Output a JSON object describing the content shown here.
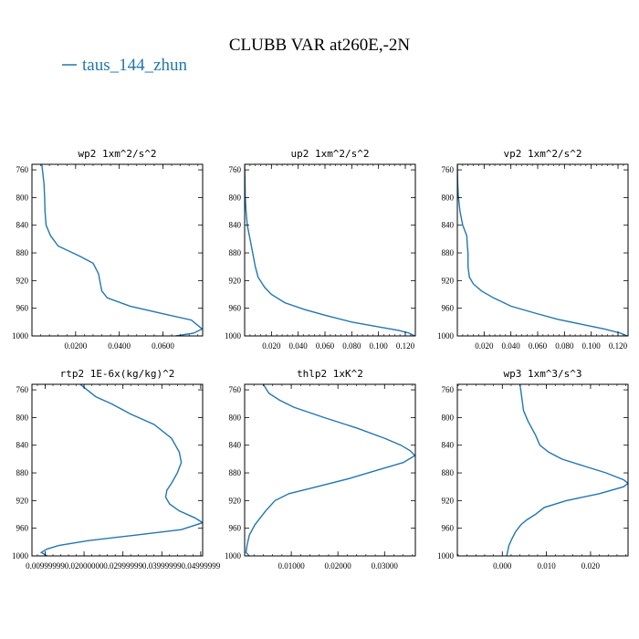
{
  "figure": {
    "title": "CLUBB VAR at260E,-2N",
    "legend_label": "taus_144_zhun",
    "line_color": "#1f77b4"
  },
  "chart_data": [
    {
      "type": "line",
      "title": "wp2  1xm^2/s^2",
      "xlim": [
        0.0,
        0.0782
      ],
      "ylim": [
        1000,
        752
      ],
      "xticks": [
        0.02,
        0.04,
        0.06
      ],
      "xtick_labels": [
        "0.0200",
        "0.0400",
        "0.0600"
      ],
      "yticks": [
        760,
        800,
        840,
        880,
        920,
        960,
        1000
      ],
      "ytick_labels": [
        "760",
        "800",
        "840",
        "880",
        "920",
        "960",
        "1000"
      ],
      "series": [
        {
          "x": [
            0.0045,
            0.0055,
            0.0058,
            0.006,
            0.0065,
            0.0085,
            0.012,
            0.022,
            0.028,
            0.0305,
            0.032,
            0.0345,
            0.045,
            0.06,
            0.073,
            0.078,
            0.074,
            0.066
          ],
          "y": [
            752,
            780,
            800,
            820,
            840,
            855,
            870,
            885,
            895,
            910,
            935,
            945,
            957,
            968,
            977,
            990,
            996,
            1000
          ]
        }
      ]
    },
    {
      "type": "line",
      "title": "up2  1xm^2/s^2",
      "xlim": [
        0.0,
        0.1275
      ],
      "ylim": [
        1000,
        752
      ],
      "xticks": [
        0.02,
        0.04,
        0.06,
        0.08,
        0.1,
        0.12
      ],
      "xtick_labels": [
        "0.020",
        "0.040",
        "0.060",
        "0.080",
        "0.100",
        "0.120"
      ],
      "series": [
        {
          "x": [
            0.0,
            0.0003,
            0.0005,
            0.001,
            0.002,
            0.004,
            0.006,
            0.008,
            0.01,
            0.015,
            0.02,
            0.03,
            0.045,
            0.06,
            0.08,
            0.1,
            0.115,
            0.123,
            0.127
          ],
          "y": [
            752,
            780,
            800,
            820,
            840,
            860,
            880,
            900,
            915,
            930,
            940,
            952,
            962,
            970,
            980,
            987,
            992,
            996,
            1000
          ]
        }
      ]
    },
    {
      "type": "line",
      "title": "vp2  1xm^2/s^2",
      "xlim": [
        0.0,
        0.1275
      ],
      "ylim": [
        1000,
        752
      ],
      "xticks": [
        0.02,
        0.04,
        0.06,
        0.08,
        0.1,
        0.12
      ],
      "xtick_labels": [
        "0.020",
        "0.040",
        "0.060",
        "0.080",
        "0.100",
        "0.120"
      ],
      "series": [
        {
          "x": [
            0.0,
            0.0003,
            0.0008,
            0.002,
            0.004,
            0.007,
            0.0075,
            0.008,
            0.008,
            0.009,
            0.012,
            0.018,
            0.027,
            0.04,
            0.058,
            0.075,
            0.095,
            0.11,
            0.122,
            0.127
          ],
          "y": [
            752,
            780,
            800,
            820,
            840,
            855,
            870,
            880,
            900,
            915,
            925,
            935,
            945,
            957,
            967,
            976,
            984,
            990,
            996,
            1000
          ]
        }
      ]
    },
    {
      "type": "line",
      "title": "rtp2  1E-6x(kg/kg)^2",
      "xlim": [
        0.0066,
        0.0505
      ],
      "ylim": [
        1000,
        752
      ],
      "xticks": [
        0.01,
        0.02,
        0.03,
        0.04,
        0.05
      ],
      "xtick_labels": [
        "0.00999999",
        "0.02000000",
        "0.02999999",
        "0.03999999",
        "0.04999999"
      ],
      "series": [
        {
          "x": [
            0.019,
            0.023,
            0.027,
            0.032,
            0.038,
            0.0425,
            0.0445,
            0.045,
            0.044,
            0.0425,
            0.0413,
            0.041,
            0.042,
            0.0445,
            0.0485,
            0.0505,
            0.045,
            0.033,
            0.021,
            0.0135,
            0.0105,
            0.009,
            0.0105
          ],
          "y": [
            752,
            770,
            780,
            795,
            810,
            830,
            850,
            865,
            880,
            895,
            905,
            915,
            925,
            935,
            945,
            952,
            962,
            970,
            978,
            985,
            990,
            995,
            1000
          ]
        }
      ]
    },
    {
      "type": "line",
      "title": "thlp2  1xK^2",
      "xlim": [
        0.0,
        0.0366
      ],
      "ylim": [
        1000,
        752
      ],
      "xticks": [
        0.01,
        0.02,
        0.03
      ],
      "xtick_labels": [
        "0.01000",
        "0.02000",
        "0.03000"
      ],
      "series": [
        {
          "x": [
            0.004,
            0.0052,
            0.0075,
            0.0105,
            0.017,
            0.024,
            0.03,
            0.0335,
            0.0355,
            0.0365,
            0.034,
            0.029,
            0.0225,
            0.0155,
            0.0095,
            0.0065,
            0.0045,
            0.0022,
            0.001,
            0.0005,
            0.0003,
            0.001
          ],
          "y": [
            752,
            765,
            775,
            785,
            800,
            815,
            830,
            840,
            848,
            855,
            865,
            875,
            888,
            900,
            910,
            920,
            935,
            955,
            970,
            985,
            995,
            1000
          ]
        }
      ]
    },
    {
      "type": "line",
      "title": "wp3  1xm^3/s^3",
      "xlim": [
        -0.0102,
        0.0285
      ],
      "ylim": [
        1000,
        752
      ],
      "xticks": [
        0.0,
        0.01,
        0.02
      ],
      "xtick_labels": [
        "0.000",
        "0.010",
        "0.020"
      ],
      "series": [
        {
          "x": [
            0.004,
            0.0045,
            0.0048,
            0.0058,
            0.0075,
            0.0085,
            0.0105,
            0.0135,
            0.0185,
            0.0235,
            0.0275,
            0.0285,
            0.0275,
            0.022,
            0.0145,
            0.0095,
            0.0075,
            0.0055,
            0.0042,
            0.003,
            0.0022,
            0.0015,
            0.001
          ],
          "y": [
            752,
            775,
            790,
            805,
            825,
            840,
            850,
            860,
            870,
            880,
            890,
            895,
            900,
            910,
            920,
            930,
            940,
            948,
            955,
            965,
            975,
            985,
            1000
          ]
        }
      ]
    }
  ]
}
